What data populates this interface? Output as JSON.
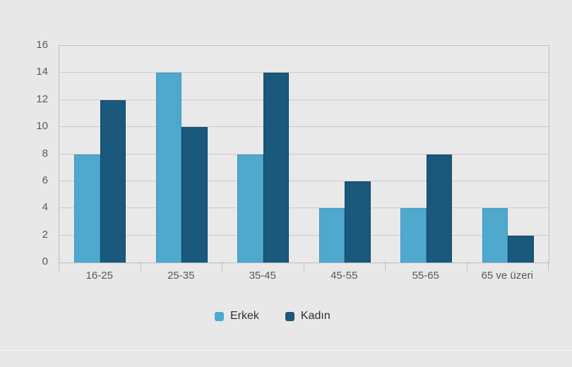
{
  "chart_data": {
    "type": "bar",
    "title": "",
    "xlabel": "",
    "ylabel": "",
    "categories": [
      "16-25",
      "25-35",
      "35-45",
      "45-55",
      "55-65",
      "65 ve üzeri"
    ],
    "series": [
      {
        "name": "Erkek",
        "color": "#4fa8ce",
        "edge": "#3f96bd",
        "values": [
          8,
          14,
          8,
          4,
          4,
          4
        ]
      },
      {
        "name": "Kadın",
        "color": "#1a587c",
        "edge": "#12486a",
        "values": [
          12,
          10,
          14,
          6,
          8,
          2
        ]
      }
    ],
    "ylim": [
      0,
      16
    ],
    "yticks": [
      0,
      2,
      4,
      6,
      8,
      10,
      12,
      14,
      16
    ],
    "grid": "horizontal",
    "legend_position": "bottom"
  },
  "ui_colors": {
    "background": "#e8e8e8",
    "plot_background": "#e9e9e9",
    "gridline": "#c9c9c9",
    "axis_frame": "#bdbdbd",
    "axis_text": "#58585a",
    "legend_text": "#2e2e2e",
    "card_bottom_edge": "#f8f8f8"
  }
}
